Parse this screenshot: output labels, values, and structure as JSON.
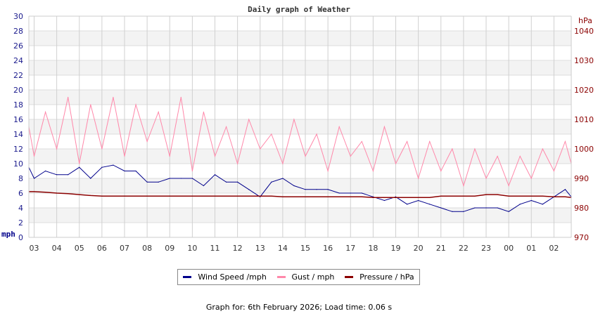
{
  "chart_data": {
    "type": "line",
    "title": "Daily graph of Weather",
    "y_left": {
      "label": "mph",
      "range": [
        0,
        30
      ],
      "ticks": [
        0,
        2,
        4,
        6,
        8,
        10,
        12,
        14,
        16,
        18,
        20,
        22,
        24,
        26,
        28,
        30
      ]
    },
    "y_right": {
      "label": "hPa",
      "range": [
        970,
        1045
      ],
      "ticks": [
        970,
        980,
        990,
        1000,
        1010,
        1020,
        1030,
        1040
      ]
    },
    "x_ticks": [
      "03",
      "04",
      "05",
      "06",
      "07",
      "08",
      "09",
      "10",
      "11",
      "12",
      "13",
      "14",
      "15",
      "16",
      "17",
      "18",
      "19",
      "20",
      "21",
      "22",
      "23",
      "00",
      "01",
      "02"
    ],
    "x_range": [
      "02:46",
      "02:46"
    ],
    "grid": true,
    "times": [
      "02:46",
      "03:00",
      "03:30",
      "04:00",
      "04:30",
      "05:00",
      "05:30",
      "06:00",
      "06:30",
      "07:00",
      "07:30",
      "08:00",
      "08:30",
      "09:00",
      "09:30",
      "10:00",
      "10:30",
      "11:00",
      "11:30",
      "12:00",
      "12:30",
      "13:00",
      "13:30",
      "14:00",
      "14:30",
      "15:00",
      "15:30",
      "16:00",
      "16:30",
      "17:00",
      "17:30",
      "18:00",
      "18:30",
      "19:00",
      "19:30",
      "20:00",
      "20:30",
      "21:00",
      "21:30",
      "22:00",
      "22:30",
      "23:00",
      "23:30",
      "00:00",
      "00:30",
      "01:00",
      "01:30",
      "02:00",
      "02:30",
      "02:46"
    ],
    "series": [
      {
        "name": "Wind Speed /mph",
        "axis": "left",
        "color": "#00008b",
        "values": [
          9.5,
          8,
          9,
          8.5,
          8.5,
          9.5,
          8,
          9.5,
          9.8,
          9,
          9,
          7.5,
          7.5,
          8,
          8,
          8,
          7,
          8.5,
          7.5,
          7.5,
          6.5,
          5.5,
          7.5,
          8,
          7,
          6.5,
          6.5,
          6.5,
          6,
          6,
          6,
          5.5,
          5,
          5.5,
          4.5,
          5,
          4.5,
          4,
          3.5,
          3.5,
          4,
          4,
          4,
          3.5,
          4.5,
          5,
          4.5,
          5.5,
          6.5,
          5.5
        ]
      },
      {
        "name": "Gust / mph",
        "axis": "left",
        "color": "#ff88aa",
        "values": [
          15,
          11,
          17,
          12,
          19,
          10,
          18,
          12,
          19,
          11,
          18,
          13,
          17,
          11,
          19,
          9,
          17,
          11,
          15,
          10,
          16,
          12,
          14,
          10,
          16,
          11,
          14,
          9,
          15,
          11,
          13,
          9,
          15,
          10,
          13,
          8,
          13,
          9,
          12,
          7,
          12,
          8,
          11,
          7,
          11,
          8,
          12,
          9,
          13,
          10
        ]
      },
      {
        "name": "Pressure / hPa",
        "axis": "right",
        "color": "#8b0000",
        "values": [
          985.5,
          985.5,
          985.3,
          985,
          984.8,
          984.5,
          984.2,
          984,
          984,
          984,
          984,
          984,
          984,
          984,
          984,
          984,
          984,
          984,
          984,
          984,
          984,
          984,
          984,
          983.75,
          983.75,
          983.75,
          983.75,
          983.75,
          983.75,
          983.75,
          983.75,
          983.5,
          983.5,
          983.5,
          983.5,
          983.5,
          983.5,
          984,
          984,
          984,
          984,
          984.5,
          984.5,
          984,
          984,
          984,
          984,
          983.75,
          983.75,
          983.5
        ]
      }
    ]
  },
  "footer": "Graph for: 6th February 2026; Load time: 0.06 s"
}
